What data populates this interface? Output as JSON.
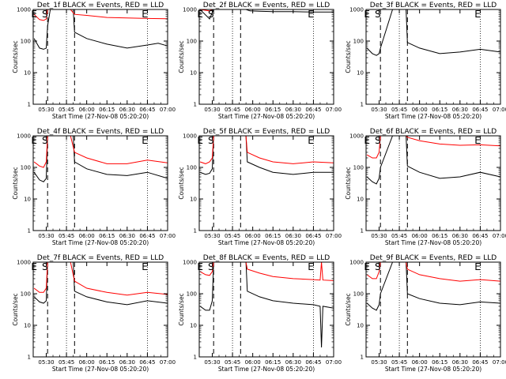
{
  "colors": {
    "events": "#000000",
    "lld": "#ff0000",
    "background": "#ffffff"
  },
  "common": {
    "xlabel": "Start Time (27-Nov-08 05:20:20)",
    "ylabel": "Counts/sec",
    "xticks": [
      "05:30",
      "05:45",
      "06:00",
      "06:15",
      "06:30",
      "06:45",
      "07:00"
    ],
    "yticks": [
      "1",
      "10",
      "100",
      "1000"
    ],
    "markers": [
      "E",
      "S",
      "E"
    ]
  },
  "chart_data": [
    {
      "type": "line",
      "title": "Det_1f BLACK = Events, RED = LLD",
      "xlabel": "Start Time (27-Nov-08 05:20:20)",
      "ylabel": "Counts/sec",
      "yscale": "log",
      "ylim": [
        1,
        1000
      ],
      "xlim": [
        "05:20:20",
        "07:00:00"
      ],
      "markers": [
        {
          "label": "E",
          "time": "05:21:00"
        },
        {
          "label": "S",
          "time": "05:29:00"
        },
        {
          "label": "E",
          "time": "06:43:00"
        }
      ],
      "series": [
        {
          "name": "Events",
          "x": [
            "05:21",
            "05:25",
            "05:28",
            "05:30",
            "05:31",
            "05:33",
            "05:40",
            "05:48",
            "05:50",
            "05:51",
            "06:00",
            "06:15",
            "06:30",
            "06:45",
            "06:53",
            "07:00"
          ],
          "y": [
            120,
            60,
            55,
            60,
            300,
            1000,
            1000,
            1000,
            1000,
            190,
            120,
            80,
            60,
            75,
            85,
            70
          ]
        },
        {
          "name": "LLD",
          "x": [
            "05:21",
            "05:25",
            "05:28",
            "05:30",
            "05:31",
            "05:40",
            "05:48",
            "05:51",
            "06:00",
            "06:15",
            "06:30",
            "06:45",
            "07:00"
          ],
          "y": [
            700,
            480,
            450,
            500,
            1000,
            1000,
            1000,
            700,
            650,
            560,
            540,
            520,
            510
          ]
        }
      ]
    },
    {
      "type": "line",
      "title": "Det_2f BLACK = Events, RED = LLD",
      "xlabel": "Start Time (27-Nov-08 05:20:20)",
      "ylabel": "Counts/sec",
      "yscale": "log",
      "ylim": [
        1,
        1000
      ],
      "xlim": [
        "05:20:20",
        "07:00:00"
      ],
      "markers": [
        {
          "label": "E",
          "time": "05:21:00"
        },
        {
          "label": "S",
          "time": "05:29:00"
        },
        {
          "label": "E",
          "time": "06:43:00"
        }
      ],
      "series": [
        {
          "name": "Events",
          "x": [
            "05:21",
            "05:28",
            "05:30",
            "05:31",
            "05:50",
            "05:52",
            "05:55",
            "05:58",
            "06:05",
            "06:15",
            "06:30",
            "06:45",
            "07:00"
          ],
          "y": [
            1000,
            500,
            800,
            1000,
            1000,
            1000,
            1000,
            900,
            880,
            850,
            850,
            830,
            830
          ]
        },
        {
          "name": "LLD",
          "x": [
            "05:21",
            "05:28",
            "05:30",
            "05:31",
            "05:50",
            "05:55",
            "05:58",
            "06:05",
            "06:15",
            "06:30",
            "06:45",
            "07:00"
          ],
          "y": [
            1000,
            900,
            1000,
            1000,
            1000,
            1000,
            1000,
            1000,
            1000,
            1000,
            1000,
            1000
          ]
        }
      ]
    },
    {
      "type": "line",
      "title": "Det_3f BLACK = Events, RED = LLD",
      "xlabel": "Start Time (27-Nov-08 05:20:20)",
      "ylabel": "Counts/sec",
      "yscale": "log",
      "ylim": [
        1,
        1000
      ],
      "xlim": [
        "05:20:20",
        "07:00:00"
      ],
      "markers": [
        {
          "label": "E",
          "time": "05:21:00"
        },
        {
          "label": "S",
          "time": "05:29:00"
        },
        {
          "label": "E",
          "time": "06:43:00"
        }
      ],
      "series": [
        {
          "name": "Events",
          "x": [
            "05:21",
            "05:25",
            "05:28",
            "05:30",
            "05:31",
            "05:40",
            "05:50",
            "05:51",
            "06:00",
            "06:15",
            "06:30",
            "06:45",
            "07:00"
          ],
          "y": [
            60,
            40,
            35,
            40,
            60,
            1000,
            1000,
            90,
            60,
            40,
            45,
            55,
            45
          ]
        },
        {
          "name": "LLD",
          "x": [
            "05:21",
            "05:25",
            "05:28",
            "05:30",
            "05:31",
            "05:40",
            "05:50",
            "05:51",
            "06:00",
            "06:15",
            "06:30",
            "06:45",
            "07:00"
          ],
          "y": [
            1000,
            1000,
            1000,
            1000,
            1000,
            1000,
            1000,
            1000,
            1000,
            1000,
            1000,
            1000,
            1000
          ]
        }
      ]
    },
    {
      "type": "line",
      "title": "Det_4f BLACK = Events, RED = LLD",
      "xlabel": "Start Time (27-Nov-08 05:20:20)",
      "ylabel": "Counts/sec",
      "yscale": "log",
      "ylim": [
        1,
        1000
      ],
      "xlim": [
        "05:20:20",
        "07:00:00"
      ],
      "markers": [
        {
          "label": "E",
          "time": "05:21:00"
        },
        {
          "label": "S",
          "time": "05:29:00"
        },
        {
          "label": "E",
          "time": "06:43:00"
        }
      ],
      "series": [
        {
          "name": "Events",
          "x": [
            "05:21",
            "05:25",
            "05:28",
            "05:30",
            "05:31",
            "05:40",
            "05:48",
            "05:50",
            "05:51",
            "06:00",
            "06:15",
            "06:30",
            "06:45",
            "07:00"
          ],
          "y": [
            70,
            40,
            35,
            45,
            1000,
            1000,
            1000,
            1000,
            150,
            90,
            60,
            55,
            70,
            45
          ]
        },
        {
          "name": "LLD",
          "x": [
            "05:21",
            "05:25",
            "05:28",
            "05:30",
            "05:31",
            "05:40",
            "05:48",
            "05:51",
            "06:00",
            "06:15",
            "06:30",
            "06:45",
            "07:00"
          ],
          "y": [
            150,
            110,
            100,
            150,
            1000,
            1000,
            1000,
            300,
            200,
            130,
            130,
            170,
            140
          ]
        }
      ]
    },
    {
      "type": "line",
      "title": "Det_5f BLACK = Events, RED = LLD",
      "xlabel": "Start Time (27-Nov-08 05:20:20)",
      "ylabel": "Counts/sec",
      "yscale": "log",
      "ylim": [
        1,
        1000
      ],
      "xlim": [
        "05:20:20",
        "07:00:00"
      ],
      "markers": [
        {
          "label": "E",
          "time": "05:21:00"
        },
        {
          "label": "S",
          "time": "05:29:00"
        },
        {
          "label": "E",
          "time": "06:43:00"
        }
      ],
      "series": [
        {
          "name": "Events",
          "x": [
            "05:21",
            "05:25",
            "05:28",
            "05:30",
            "05:31",
            "05:40",
            "05:55",
            "05:56",
            "06:05",
            "06:15",
            "06:30",
            "06:45",
            "07:00"
          ],
          "y": [
            70,
            60,
            65,
            90,
            1000,
            1000,
            1000,
            150,
            100,
            70,
            60,
            70,
            70
          ]
        },
        {
          "name": "LLD",
          "x": [
            "05:21",
            "05:25",
            "05:28",
            "05:30",
            "05:31",
            "05:40",
            "05:55",
            "05:56",
            "06:05",
            "06:15",
            "06:30",
            "06:45",
            "07:00"
          ],
          "y": [
            150,
            130,
            150,
            200,
            1000,
            1000,
            1000,
            300,
            200,
            150,
            130,
            150,
            140
          ]
        }
      ]
    },
    {
      "type": "line",
      "title": "Det_6f BLACK = Events, RED = LLD",
      "xlabel": "Start Time (27-Nov-08 05:20:20)",
      "ylabel": "Counts/sec",
      "yscale": "log",
      "ylim": [
        1,
        1000
      ],
      "xlim": [
        "05:20:20",
        "07:00:00"
      ],
      "markers": [
        {
          "label": "E",
          "time": "05:21:00"
        },
        {
          "label": "S",
          "time": "05:29:00"
        },
        {
          "label": "E",
          "time": "06:43:00"
        }
      ],
      "series": [
        {
          "name": "Events",
          "x": [
            "05:21",
            "05:25",
            "05:28",
            "05:30",
            "05:31",
            "05:40",
            "05:50",
            "05:51",
            "06:00",
            "06:15",
            "06:30",
            "06:45",
            "07:00"
          ],
          "y": [
            50,
            35,
            30,
            45,
            100,
            1000,
            1000,
            110,
            70,
            45,
            50,
            70,
            50
          ]
        },
        {
          "name": "LLD",
          "x": [
            "05:21",
            "05:25",
            "05:28",
            "05:30",
            "05:31",
            "05:40",
            "05:50",
            "05:51",
            "06:00",
            "06:15",
            "06:30",
            "06:45",
            "07:00"
          ],
          "y": [
            250,
            200,
            200,
            300,
            1000,
            1000,
            1000,
            900,
            700,
            550,
            500,
            520,
            480
          ]
        }
      ]
    },
    {
      "type": "line",
      "title": "Det_7f BLACK = Events, RED = LLD",
      "xlabel": "Start Time (27-Nov-08 05:20:20)",
      "ylabel": "Counts/sec",
      "yscale": "log",
      "ylim": [
        1,
        1000
      ],
      "xlim": [
        "05:20:20",
        "07:00:00"
      ],
      "markers": [
        {
          "label": "E",
          "time": "05:21:00"
        },
        {
          "label": "S",
          "time": "05:29:00"
        },
        {
          "label": "E",
          "time": "06:43:00"
        }
      ],
      "series": [
        {
          "name": "Events",
          "x": [
            "05:21",
            "05:25",
            "05:28",
            "05:30",
            "05:31",
            "05:40",
            "05:48",
            "05:50",
            "05:51",
            "06:00",
            "06:15",
            "06:30",
            "06:45",
            "07:00"
          ],
          "y": [
            80,
            55,
            50,
            60,
            1000,
            1000,
            1000,
            1000,
            120,
            80,
            55,
            45,
            60,
            50
          ]
        },
        {
          "name": "LLD",
          "x": [
            "05:21",
            "05:25",
            "05:28",
            "05:30",
            "05:31",
            "05:40",
            "05:48",
            "05:51",
            "06:00",
            "06:15",
            "06:30",
            "06:45",
            "07:00"
          ],
          "y": [
            150,
            110,
            110,
            150,
            1000,
            1000,
            1000,
            250,
            150,
            110,
            90,
            110,
            95
          ]
        }
      ]
    },
    {
      "type": "line",
      "title": "Det_8f BLACK = Events, RED = LLD",
      "xlabel": "Start Time (27-Nov-08 05:20:20)",
      "ylabel": "Counts/sec",
      "yscale": "log",
      "ylim": [
        1,
        1000
      ],
      "xlim": [
        "05:20:20",
        "07:00:00"
      ],
      "markers": [
        {
          "label": "E",
          "time": "05:21:00"
        },
        {
          "label": "S",
          "time": "05:29:00"
        },
        {
          "label": "E",
          "time": "06:43:00"
        }
      ],
      "series": [
        {
          "name": "Events",
          "x": [
            "05:21",
            "05:25",
            "05:28",
            "05:30",
            "05:31",
            "05:40",
            "05:55",
            "05:56",
            "06:05",
            "06:15",
            "06:30",
            "06:45",
            "06:50",
            "06:51",
            "06:52",
            "07:00"
          ],
          "y": [
            40,
            30,
            30,
            60,
            1000,
            1000,
            1000,
            120,
            80,
            60,
            50,
            45,
            40,
            2,
            40,
            35
          ]
        },
        {
          "name": "LLD",
          "x": [
            "05:21",
            "05:25",
            "05:28",
            "05:30",
            "05:31",
            "05:40",
            "05:55",
            "05:56",
            "06:05",
            "06:15",
            "06:30",
            "06:45",
            "06:50",
            "06:51",
            "06:52",
            "07:00"
          ],
          "y": [
            500,
            400,
            380,
            500,
            1000,
            1000,
            1000,
            600,
            450,
            350,
            300,
            280,
            270,
            1000,
            270,
            260
          ]
        }
      ]
    },
    {
      "type": "line",
      "title": "Det_9f BLACK = Events, RED = LLD",
      "xlabel": "Start Time (27-Nov-08 05:20:20)",
      "ylabel": "Counts/sec",
      "yscale": "log",
      "ylim": [
        1,
        1000
      ],
      "xlim": [
        "05:20:20",
        "07:00:00"
      ],
      "markers": [
        {
          "label": "E",
          "time": "05:21:00"
        },
        {
          "label": "S",
          "time": "05:29:00"
        },
        {
          "label": "E",
          "time": "06:43:00"
        }
      ],
      "series": [
        {
          "name": "Events",
          "x": [
            "05:21",
            "05:25",
            "05:28",
            "05:30",
            "05:31",
            "05:40",
            "05:50",
            "05:51",
            "06:00",
            "06:15",
            "06:30",
            "06:45",
            "07:00"
          ],
          "y": [
            50,
            35,
            30,
            45,
            100,
            1000,
            1000,
            100,
            70,
            50,
            45,
            55,
            50
          ]
        },
        {
          "name": "LLD",
          "x": [
            "05:21",
            "05:25",
            "05:28",
            "05:30",
            "05:31",
            "05:40",
            "05:50",
            "05:51",
            "06:00",
            "06:15",
            "06:30",
            "06:45",
            "07:00"
          ],
          "y": [
            400,
            300,
            300,
            500,
            1000,
            1000,
            1000,
            600,
            400,
            300,
            250,
            280,
            250
          ]
        }
      ]
    }
  ]
}
